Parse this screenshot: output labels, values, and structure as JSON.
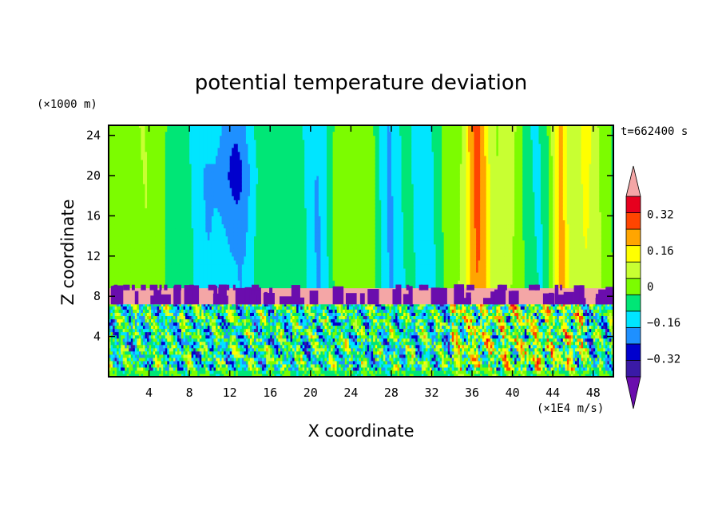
{
  "chart_data": {
    "type": "heatmap",
    "title": "potential temperature deviation",
    "xlabel": "X coordinate",
    "ylabel": "Z coordinate",
    "x_unit": "(×1E4 m/s)",
    "y_unit": "(×1000 m)",
    "time_label": "t=662400 s",
    "xlim": [
      0,
      50
    ],
    "ylim": [
      0,
      25
    ],
    "x_ticks": [
      4,
      8,
      12,
      16,
      20,
      24,
      28,
      32,
      36,
      40,
      44,
      48
    ],
    "y_ticks": [
      4,
      8,
      12,
      16,
      20,
      24
    ],
    "colorbar": {
      "tick_values": [
        0.32,
        0.16,
        0,
        -0.16,
        -0.32
      ],
      "tick_labels": [
        "0.32",
        "0.16",
        "0",
        "−0.16",
        "−0.32"
      ],
      "levels": [
        -0.48,
        -0.4,
        -0.32,
        -0.24,
        -0.16,
        -0.08,
        0,
        0.08,
        0.16,
        0.24,
        0.32,
        0.4,
        0.48
      ],
      "colors": [
        "#6a0dad",
        "#3a1aa6",
        "#0000cd",
        "#1e90ff",
        "#00e5ff",
        "#00e676",
        "#7cfc00",
        "#c8ff32",
        "#ffff00",
        "#ffa500",
        "#ff4500",
        "#e6001e",
        "#f4a6a6"
      ],
      "extend": "both"
    },
    "regions": {
      "upper_band_z": [
        8.8,
        25
      ],
      "interface_band_z": [
        7.2,
        8.8
      ],
      "lower_band_z": [
        0,
        7.2
      ]
    }
  }
}
